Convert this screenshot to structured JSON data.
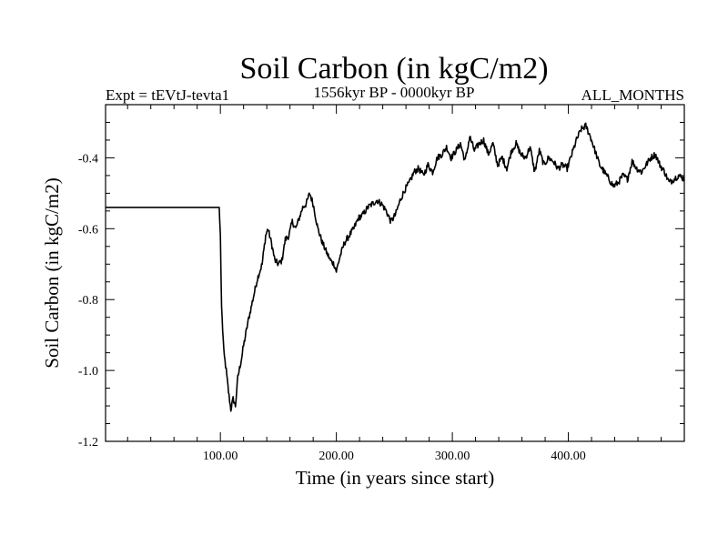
{
  "chart_data": {
    "type": "line",
    "title": "Soil Carbon (in kgC/m2)",
    "subtitle_left": "Expt = tEVtJ-tevta1",
    "subtitle_center": "1556kyr BP - 0000kyr BP",
    "subtitle_right": "ALL_MONTHS",
    "xlabel": "Time (in years since start)",
    "ylabel": "Soil Carbon (in kgC/m2)",
    "xlim": [
      1,
      500
    ],
    "ylim": [
      -1.2,
      -0.25
    ],
    "xticks": [
      {
        "value": 100,
        "label": "100.00"
      },
      {
        "value": 200,
        "label": "200.00"
      },
      {
        "value": 300,
        "label": "300.00"
      },
      {
        "value": 400,
        "label": "400.00"
      }
    ],
    "yticks": [
      {
        "value": -1.2,
        "label": "-1.2"
      },
      {
        "value": -1.0,
        "label": "-1.0"
      },
      {
        "value": -0.8,
        "label": "-0.8"
      },
      {
        "value": -0.6,
        "label": "-0.6"
      },
      {
        "value": -0.4,
        "label": "-0.4"
      }
    ],
    "series": [
      {
        "name": "Soil Carbon",
        "x": [
          1,
          99,
          100,
          101,
          103,
          105,
          107,
          109,
          111,
          113,
          115,
          118,
          120,
          124,
          128,
          132,
          136,
          139,
          141,
          144,
          147,
          150,
          153,
          156,
          159,
          162,
          165,
          168,
          171,
          174,
          177,
          180,
          184,
          188,
          192,
          195,
          198,
          200,
          203,
          207,
          211,
          215,
          219,
          223,
          227,
          231,
          235,
          239,
          243,
          247,
          251,
          255,
          259,
          263,
          267,
          271,
          275,
          279,
          283,
          287,
          291,
          295,
          299,
          303,
          307,
          311,
          315,
          319,
          323,
          327,
          331,
          335,
          339,
          343,
          347,
          351,
          355,
          359,
          363,
          367,
          371,
          375,
          379,
          383,
          387,
          391,
          395,
          399,
          403,
          407,
          411,
          415,
          419,
          423,
          427,
          431,
          435,
          439,
          443,
          447,
          451,
          455,
          459,
          463,
          467,
          471,
          475,
          479,
          483,
          487,
          491,
          495,
          500
        ],
        "y": [
          -0.54,
          -0.54,
          -0.62,
          -0.82,
          -0.95,
          -1.0,
          -1.06,
          -1.11,
          -1.08,
          -1.1,
          -1.02,
          -0.97,
          -0.93,
          -0.86,
          -0.8,
          -0.74,
          -0.7,
          -0.62,
          -0.6,
          -0.64,
          -0.69,
          -0.7,
          -0.69,
          -0.63,
          -0.62,
          -0.58,
          -0.6,
          -0.57,
          -0.54,
          -0.53,
          -0.5,
          -0.53,
          -0.6,
          -0.64,
          -0.67,
          -0.69,
          -0.7,
          -0.72,
          -0.68,
          -0.64,
          -0.62,
          -0.6,
          -0.57,
          -0.56,
          -0.54,
          -0.53,
          -0.52,
          -0.53,
          -0.55,
          -0.58,
          -0.56,
          -0.52,
          -0.49,
          -0.47,
          -0.44,
          -0.43,
          -0.45,
          -0.42,
          -0.44,
          -0.4,
          -0.39,
          -0.37,
          -0.4,
          -0.38,
          -0.36,
          -0.41,
          -0.34,
          -0.38,
          -0.36,
          -0.35,
          -0.39,
          -0.36,
          -0.42,
          -0.4,
          -0.43,
          -0.38,
          -0.36,
          -0.39,
          -0.4,
          -0.37,
          -0.44,
          -0.38,
          -0.42,
          -0.4,
          -0.41,
          -0.43,
          -0.42,
          -0.43,
          -0.39,
          -0.35,
          -0.32,
          -0.31,
          -0.34,
          -0.38,
          -0.42,
          -0.44,
          -0.46,
          -0.48,
          -0.47,
          -0.45,
          -0.46,
          -0.41,
          -0.43,
          -0.44,
          -0.42,
          -0.4,
          -0.39,
          -0.42,
          -0.44,
          -0.47,
          -0.46,
          -0.45,
          -0.46
        ]
      }
    ]
  }
}
